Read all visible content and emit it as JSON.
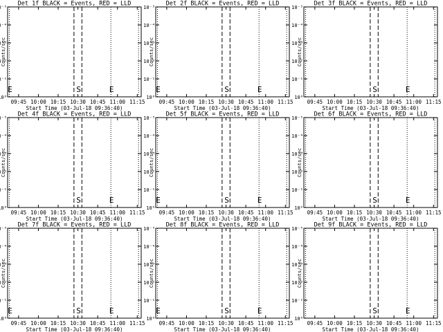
{
  "chart_data": {
    "type": "line",
    "ylabel": "Counts/sec",
    "xlabel": "Start Time (03-Jul-18 09:36:40)",
    "x_ticks": [
      "09:45",
      "10:00",
      "10:15",
      "10:30",
      "10:45",
      "11:00",
      "11:15"
    ],
    "y_ticks": [
      "10⁰",
      "10⁻¹",
      "10⁻²",
      "10⁻³",
      "10⁻⁴",
      "10⁻⁵"
    ],
    "grid": false,
    "panels": [
      {
        "title": "Det 1f BLACK = Events, RED = LLD",
        "markers": [
          {
            "text": "E",
            "x": "09:38"
          },
          {
            "text": "S",
            "x": "10:30"
          },
          {
            "text": "E",
            "x": "10:55"
          }
        ]
      },
      {
        "title": "Det 2f BLACK = Events, RED = LLD",
        "markers": [
          {
            "text": "E",
            "x": "09:38"
          },
          {
            "text": "S",
            "x": "10:30"
          },
          {
            "text": "E",
            "x": "10:55"
          }
        ]
      },
      {
        "title": "Det 3f BLACK = Events, RED = LLD",
        "markers": [
          {
            "text": "S",
            "x": "10:30"
          },
          {
            "text": "E",
            "x": "10:55"
          }
        ]
      },
      {
        "title": "Det 4f BLACK = Events, RED = LLD",
        "markers": [
          {
            "text": "S",
            "x": "10:30"
          },
          {
            "text": "E",
            "x": "10:55"
          }
        ]
      },
      {
        "title": "Det 5f BLACK = Events, RED = LLD",
        "markers": [
          {
            "text": "E",
            "x": "09:38"
          },
          {
            "text": "S",
            "x": "10:30"
          },
          {
            "text": "E",
            "x": "10:55"
          }
        ]
      },
      {
        "title": "Det 6f BLACK = Events, RED = LLD",
        "markers": [
          {
            "text": "S",
            "x": "10:30"
          },
          {
            "text": "E",
            "x": "10:55"
          }
        ]
      },
      {
        "title": "Det 7f BLACK = Events, RED = LLD",
        "markers": [
          {
            "text": "E",
            "x": "09:38"
          },
          {
            "text": "S",
            "x": "10:30"
          },
          {
            "text": "E",
            "x": "10:55"
          }
        ]
      },
      {
        "title": "Det 8f BLACK = Events, RED = LLD",
        "markers": [
          {
            "text": "E",
            "x": "09:38"
          },
          {
            "text": "S",
            "x": "10:30"
          },
          {
            "text": "E",
            "x": "10:55"
          }
        ]
      },
      {
        "title": "Det 9f BLACK = Events, RED = LLD",
        "markers": [
          {
            "text": "S",
            "x": "10:30"
          },
          {
            "text": "E",
            "x": "10:55"
          }
        ]
      }
    ],
    "dotted_lines_x": [
      "09:38",
      "10:55",
      "11:16"
    ],
    "dashed_lines_x": [
      "10:27",
      "10:33"
    ],
    "xlim": [
      "09:36:40",
      "11:18"
    ],
    "ylim_exponent": [
      0,
      -5
    ]
  }
}
